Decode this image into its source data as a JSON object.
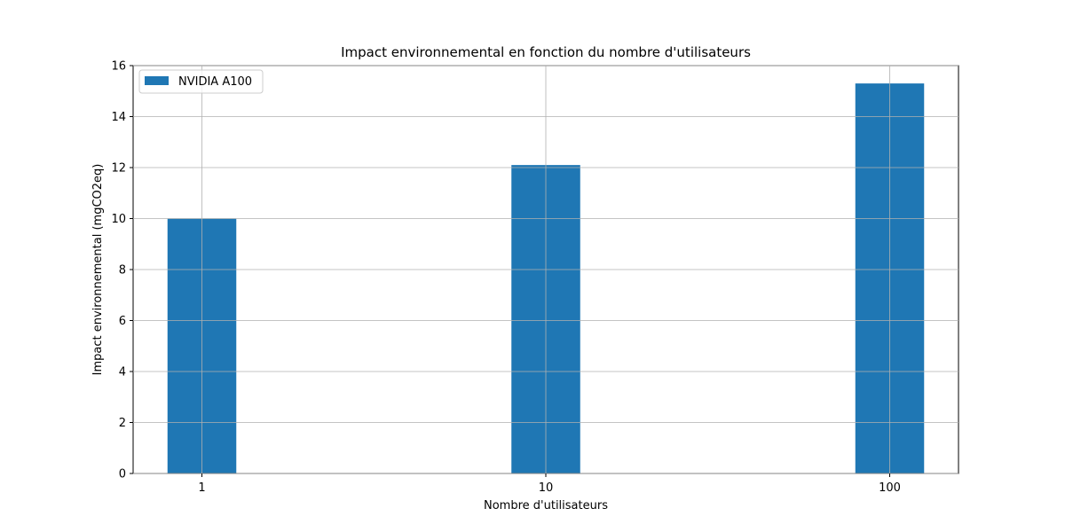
{
  "chart_data": {
    "type": "bar",
    "title": "Impact environnemental en fonction du nombre d'utilisateurs",
    "xlabel": "Nombre d'utilisateurs",
    "ylabel": "Impact environnemental (mgCO2eq)",
    "categories": [
      "1",
      "10",
      "100"
    ],
    "series": [
      {
        "name": "NVIDIA A100",
        "values": [
          10.0,
          12.1,
          15.3
        ],
        "color": "#1f77b4"
      }
    ],
    "ylim": [
      0,
      16
    ],
    "yticks": [
      0,
      2,
      4,
      6,
      8,
      10,
      12,
      14,
      16
    ],
    "grid": true,
    "legend_position": "top-left"
  }
}
